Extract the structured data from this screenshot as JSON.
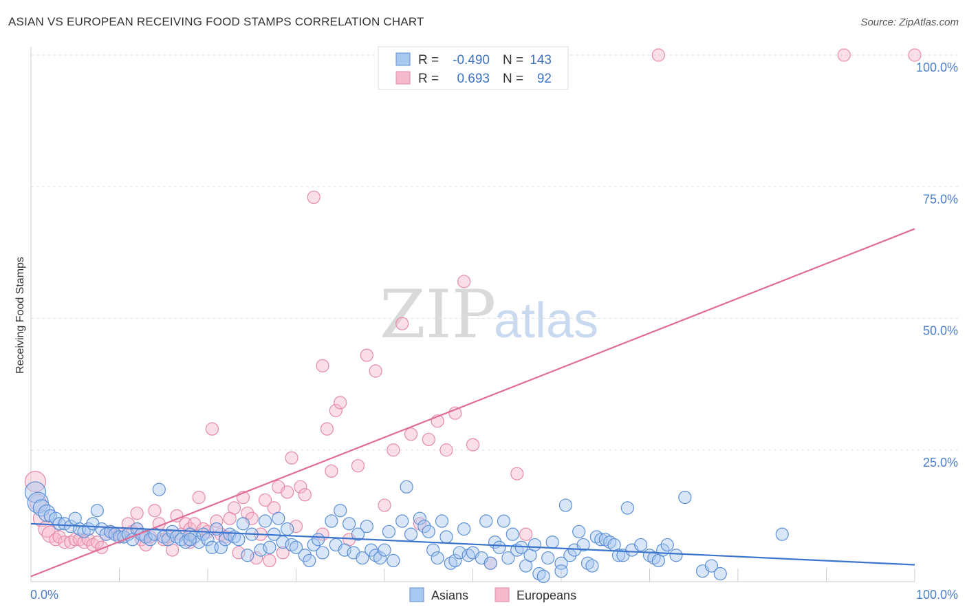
{
  "title": "ASIAN VS EUROPEAN RECEIVING FOOD STAMPS CORRELATION CHART",
  "source": "Source: ZipAtlas.com",
  "watermark": {
    "zip": "ZIP",
    "atlas": "atlas"
  },
  "colors": {
    "asian_fill": "#a8c8f0",
    "asian_stroke": "#5b8fd6",
    "asian_line": "#3b74cc",
    "euro_fill": "#f6b8cb",
    "euro_stroke": "#e58aa8",
    "euro_line": "#e06c93",
    "tick": "#4a7cc9",
    "grid": "#dddddd"
  },
  "legend": {
    "rows": [
      {
        "r_label": "R =",
        "r_value": "-0.490",
        "n_label": "N =",
        "n_value": "143"
      },
      {
        "r_label": "R =",
        "r_value": "0.693",
        "n_label": "N =",
        "n_value": "92"
      }
    ]
  },
  "bottom_legend": {
    "asians": "Asians",
    "europeans": "Europeans"
  },
  "chart_data": {
    "type": "scatter",
    "title": "ASIAN VS EUROPEAN RECEIVING FOOD STAMPS CORRELATION CHART",
    "xlabel": "",
    "ylabel": "Receiving Food Stamps",
    "xlim": [
      0,
      100
    ],
    "ylim": [
      0,
      100
    ],
    "x_ticks": [
      "0.0%",
      "100.0%"
    ],
    "y_ticks": [
      "25.0%",
      "50.0%",
      "75.0%",
      "100.0%"
    ],
    "y_tick_values": [
      25,
      50,
      75,
      100
    ],
    "grid": true,
    "legend_position": "top-center",
    "series": [
      {
        "name": "Asians",
        "r": -0.49,
        "n": 143,
        "trend": [
          [
            0,
            11.0
          ],
          [
            100,
            3.2
          ]
        ],
        "points": [
          [
            0.5,
            17,
            3
          ],
          [
            0.8,
            15,
            3
          ],
          [
            1.2,
            14,
            2
          ],
          [
            1.8,
            13,
            2
          ],
          [
            2.2,
            12.5,
            1
          ],
          [
            2.8,
            12,
            1
          ],
          [
            3.2,
            11,
            1
          ],
          [
            3.8,
            11,
            1
          ],
          [
            4.5,
            10.5,
            1
          ],
          [
            5,
            12,
            1
          ],
          [
            5.5,
            10,
            1
          ],
          [
            6,
            9.5,
            1
          ],
          [
            6.5,
            10,
            1
          ],
          [
            7,
            11,
            1
          ],
          [
            7.5,
            13.5,
            1
          ],
          [
            8,
            10,
            1
          ],
          [
            8.5,
            9,
            1
          ],
          [
            9,
            9.5,
            1
          ],
          [
            9.5,
            9,
            1
          ],
          [
            10,
            8.5,
            1
          ],
          [
            10.5,
            8.5,
            1
          ],
          [
            11,
            9,
            1
          ],
          [
            11.5,
            8,
            1
          ],
          [
            12,
            10,
            1
          ],
          [
            12.5,
            9,
            1
          ],
          [
            13,
            8.5,
            1
          ],
          [
            13.5,
            8,
            1
          ],
          [
            14,
            9,
            1
          ],
          [
            14.5,
            17.5,
            1
          ],
          [
            15,
            8.5,
            1
          ],
          [
            15.5,
            8,
            1
          ],
          [
            16,
            9.5,
            1
          ],
          [
            16.5,
            8.5,
            1
          ],
          [
            17,
            8,
            1
          ],
          [
            17.5,
            7.5,
            1
          ],
          [
            18,
            9,
            1
          ],
          [
            18.5,
            8.5,
            1
          ],
          [
            19,
            7.5,
            1
          ],
          [
            19.5,
            9,
            1
          ],
          [
            20,
            8,
            1
          ],
          [
            20.5,
            6.5,
            1
          ],
          [
            21,
            10,
            1
          ],
          [
            21.5,
            6.5,
            1
          ],
          [
            22,
            8,
            1
          ],
          [
            22.5,
            9,
            1
          ],
          [
            23,
            8.5,
            1
          ],
          [
            23.5,
            8,
            1
          ],
          [
            24,
            11,
            1
          ],
          [
            24.5,
            5,
            1
          ],
          [
            25,
            9,
            1
          ],
          [
            26,
            6,
            1
          ],
          [
            26.5,
            11.5,
            1
          ],
          [
            27,
            6.5,
            1
          ],
          [
            27.5,
            9,
            1
          ],
          [
            28,
            12,
            1
          ],
          [
            28.5,
            7.5,
            1
          ],
          [
            29,
            10,
            1
          ],
          [
            29.5,
            7,
            1
          ],
          [
            30,
            6.5,
            1
          ],
          [
            31,
            5,
            1
          ],
          [
            31.5,
            4,
            1
          ],
          [
            32,
            7,
            1
          ],
          [
            32.5,
            8,
            1
          ],
          [
            33,
            5.5,
            1
          ],
          [
            34,
            11.5,
            1
          ],
          [
            34.5,
            7,
            1
          ],
          [
            35,
            13.5,
            1
          ],
          [
            35.5,
            6,
            1
          ],
          [
            36,
            11,
            1
          ],
          [
            36.5,
            5.5,
            1
          ],
          [
            37,
            9,
            1
          ],
          [
            37.5,
            4.5,
            1
          ],
          [
            38,
            10.5,
            1
          ],
          [
            38.5,
            6,
            1
          ],
          [
            39,
            5,
            1
          ],
          [
            39.5,
            4.5,
            1
          ],
          [
            40,
            6,
            1
          ],
          [
            40.5,
            9.5,
            1
          ],
          [
            41,
            4,
            1
          ],
          [
            42,
            11.5,
            1
          ],
          [
            42.5,
            18,
            1
          ],
          [
            43,
            9,
            1
          ],
          [
            44,
            12,
            1
          ],
          [
            44.5,
            10.5,
            1
          ],
          [
            45,
            9.5,
            1
          ],
          [
            45.5,
            6,
            1
          ],
          [
            46,
            4.5,
            1
          ],
          [
            46.5,
            11.5,
            1
          ],
          [
            47,
            8.5,
            1
          ],
          [
            47.5,
            3.5,
            1
          ],
          [
            48,
            4,
            1
          ],
          [
            48.5,
            5.5,
            1
          ],
          [
            49,
            10,
            1
          ],
          [
            49.5,
            5,
            1
          ],
          [
            50,
            5.5,
            1
          ],
          [
            51,
            4.5,
            1
          ],
          [
            51.5,
            11.5,
            1
          ],
          [
            52,
            3.5,
            1
          ],
          [
            52.5,
            7.5,
            1
          ],
          [
            53,
            6.5,
            1
          ],
          [
            53.5,
            11.5,
            1
          ],
          [
            54,
            4.5,
            1
          ],
          [
            54.5,
            9,
            1
          ],
          [
            55,
            6,
            1
          ],
          [
            55.5,
            6.5,
            1
          ],
          [
            56,
            3,
            1
          ],
          [
            56.5,
            5,
            1
          ],
          [
            57,
            7,
            1
          ],
          [
            57.5,
            1.5,
            1
          ],
          [
            58,
            1,
            1
          ],
          [
            58.5,
            4.5,
            1
          ],
          [
            59,
            7.5,
            1
          ],
          [
            60,
            3.5,
            1
          ],
          [
            60.5,
            14.5,
            1
          ],
          [
            61,
            5,
            1
          ],
          [
            61.5,
            6,
            1
          ],
          [
            62,
            9.5,
            1
          ],
          [
            62.5,
            7,
            1
          ],
          [
            63,
            3.5,
            1
          ],
          [
            63.5,
            3,
            1
          ],
          [
            64,
            8.5,
            1
          ],
          [
            64.5,
            8,
            1
          ],
          [
            65,
            8,
            1
          ],
          [
            65.5,
            7.5,
            1
          ],
          [
            66,
            7,
            1
          ],
          [
            66.5,
            5,
            1
          ],
          [
            67,
            5,
            1
          ],
          [
            67.5,
            14,
            1
          ],
          [
            68,
            6,
            1
          ],
          [
            69,
            7,
            1
          ],
          [
            70,
            5,
            1
          ],
          [
            70.5,
            4.5,
            1
          ],
          [
            71,
            4,
            1
          ],
          [
            71.5,
            6,
            1
          ],
          [
            72,
            7,
            1
          ],
          [
            73,
            5,
            1
          ],
          [
            74,
            16,
            1
          ],
          [
            76,
            2,
            1
          ],
          [
            77,
            3,
            1
          ],
          [
            78,
            1.5,
            1
          ],
          [
            85,
            9,
            1
          ],
          [
            60,
            2,
            1
          ],
          [
            18,
            8,
            1
          ]
        ]
      },
      {
        "name": "Europeans",
        "r": 0.693,
        "n": 92,
        "trend": [
          [
            0,
            1.0
          ],
          [
            100,
            67.0
          ]
        ],
        "points": [
          [
            0.5,
            19,
            3
          ],
          [
            0.8,
            15,
            2
          ],
          [
            1.2,
            12,
            2
          ],
          [
            1.8,
            10,
            2
          ],
          [
            2.2,
            9,
            2
          ],
          [
            2.8,
            8,
            1
          ],
          [
            3.2,
            8.5,
            1
          ],
          [
            3.8,
            7.5,
            1
          ],
          [
            4.5,
            7.5,
            1
          ],
          [
            5,
            8,
            1
          ],
          [
            5.5,
            8,
            1
          ],
          [
            6,
            7.5,
            1
          ],
          [
            6.5,
            8,
            1
          ],
          [
            7,
            7,
            1
          ],
          [
            7.5,
            7.5,
            1
          ],
          [
            8,
            6.5,
            1
          ],
          [
            8.5,
            9,
            1
          ],
          [
            9,
            9.5,
            1
          ],
          [
            9.5,
            9,
            1
          ],
          [
            10,
            9,
            1
          ],
          [
            10.5,
            8.5,
            1
          ],
          [
            11,
            11,
            1
          ],
          [
            11.5,
            9.5,
            1
          ],
          [
            12,
            10,
            1
          ],
          [
            12.5,
            8,
            1
          ],
          [
            13,
            7,
            1
          ],
          [
            13.5,
            8.5,
            1
          ],
          [
            14,
            13.5,
            1
          ],
          [
            14.5,
            11,
            1
          ],
          [
            15,
            8,
            1
          ],
          [
            15.5,
            8.5,
            1
          ],
          [
            16,
            6,
            1
          ],
          [
            16.5,
            12.5,
            1
          ],
          [
            17,
            9,
            1
          ],
          [
            17.5,
            11,
            1
          ],
          [
            18,
            10,
            1
          ],
          [
            18.5,
            11,
            1
          ],
          [
            19,
            16,
            1
          ],
          [
            19.5,
            10,
            1
          ],
          [
            20,
            9.5,
            1
          ],
          [
            20.5,
            29,
            1
          ],
          [
            21,
            11.5,
            1
          ],
          [
            21.5,
            9,
            1
          ],
          [
            22,
            8.5,
            1
          ],
          [
            22.5,
            12,
            1
          ],
          [
            23,
            14,
            1
          ],
          [
            23.5,
            5.5,
            1
          ],
          [
            24,
            16,
            1
          ],
          [
            24.5,
            13,
            1
          ],
          [
            25,
            12,
            1
          ],
          [
            25.5,
            4.5,
            1
          ],
          [
            26,
            9,
            1
          ],
          [
            26.5,
            15.5,
            1
          ],
          [
            27,
            4,
            1
          ],
          [
            27.5,
            14,
            1
          ],
          [
            28,
            18,
            1
          ],
          [
            28.5,
            5.5,
            1
          ],
          [
            29,
            17,
            1
          ],
          [
            29.5,
            23.5,
            1
          ],
          [
            30,
            10.5,
            1
          ],
          [
            30.5,
            18,
            1
          ],
          [
            31,
            16.5,
            1
          ],
          [
            32,
            73,
            1
          ],
          [
            33,
            41,
            1
          ],
          [
            33.5,
            29,
            1
          ],
          [
            34,
            21,
            1
          ],
          [
            34.5,
            32.5,
            1
          ],
          [
            35,
            34,
            1
          ],
          [
            36,
            8,
            1
          ],
          [
            37,
            22,
            1
          ],
          [
            38,
            43,
            1
          ],
          [
            39,
            40,
            1
          ],
          [
            40,
            14.5,
            1
          ],
          [
            41,
            25,
            1
          ],
          [
            42,
            49,
            1
          ],
          [
            43,
            28,
            1
          ],
          [
            44,
            11,
            1
          ],
          [
            45,
            27,
            1
          ],
          [
            46,
            30.5,
            1
          ],
          [
            47,
            25,
            1
          ],
          [
            48,
            32,
            1
          ],
          [
            49,
            57,
            1
          ],
          [
            50,
            26,
            1
          ],
          [
            52,
            3.5,
            1
          ],
          [
            55,
            20.5,
            1
          ],
          [
            56,
            9,
            1
          ],
          [
            71,
            100,
            1
          ],
          [
            92,
            100,
            1
          ],
          [
            100,
            100,
            1
          ],
          [
            33,
            9,
            1
          ],
          [
            12,
            13,
            1
          ],
          [
            18,
            7.5,
            1
          ]
        ]
      }
    ]
  }
}
